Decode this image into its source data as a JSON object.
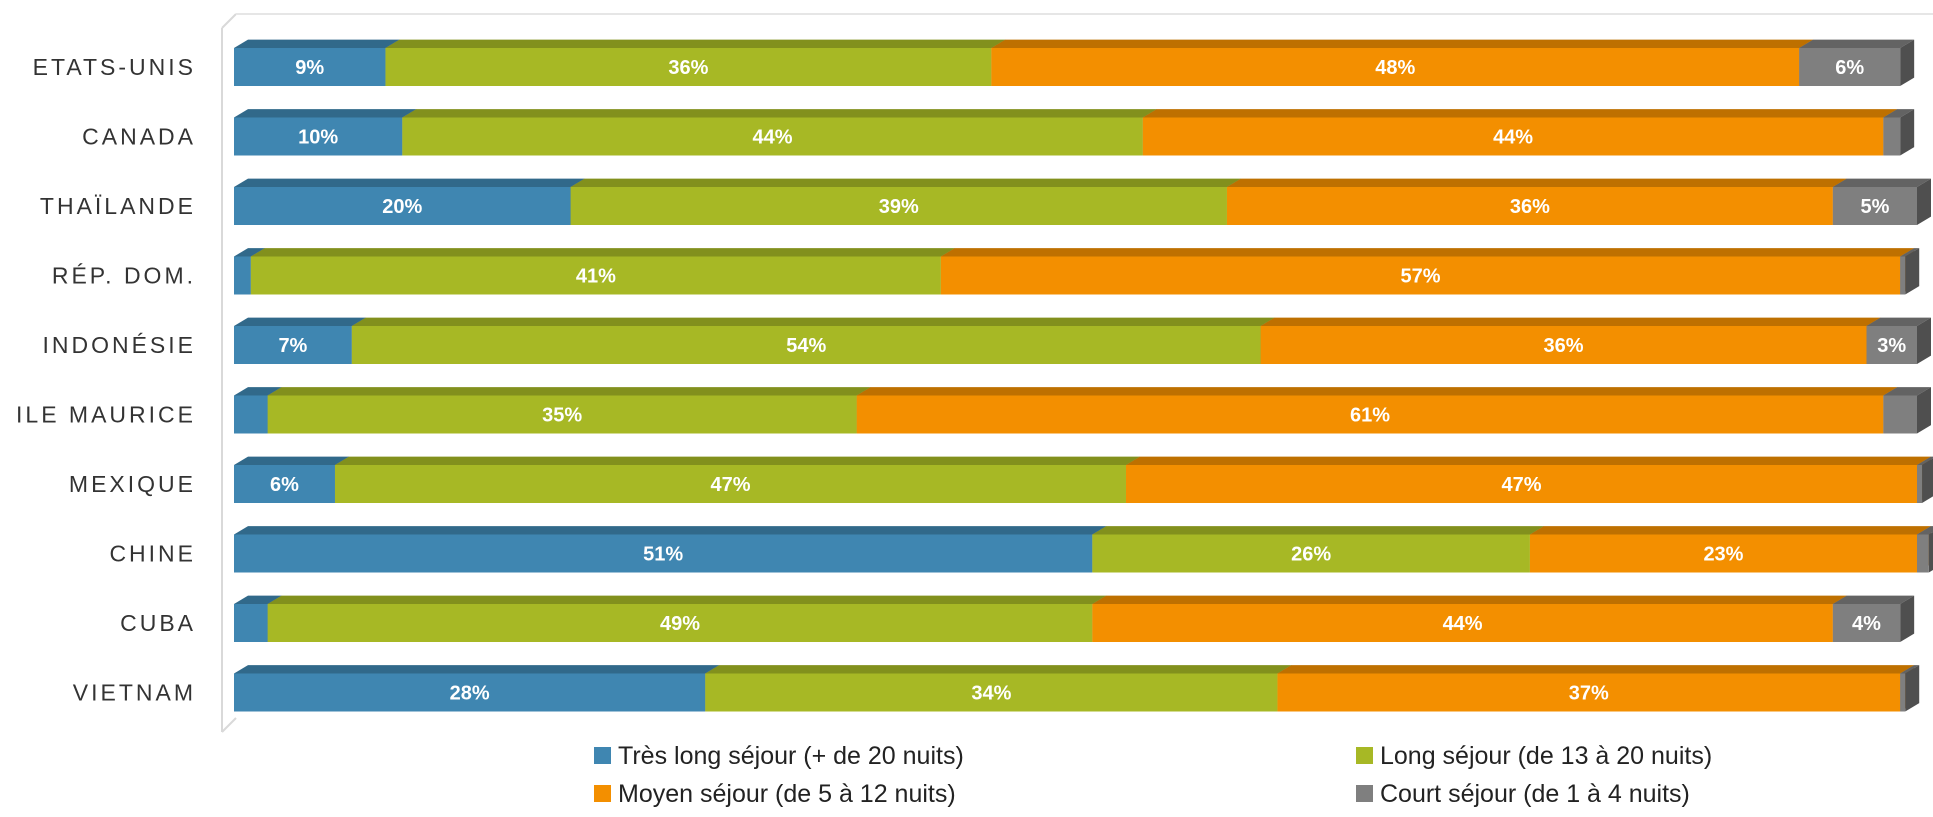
{
  "chart_data": {
    "type": "bar",
    "orientation": "horizontal",
    "stacked": "100%",
    "categories": [
      "ETATS-UNIS",
      "CANADA",
      "THAÏLANDE",
      "RÉP. DOM.",
      "INDONÉSIE",
      "ILE MAURICE",
      "MEXIQUE",
      "CHINE",
      "CUBA",
      "VIETNAM"
    ],
    "series": [
      {
        "name": "Très long séjour (+ de 20 nuits)",
        "color": "#3f86b1",
        "values": [
          9,
          10,
          20,
          1,
          7,
          2,
          6,
          51,
          2,
          28
        ],
        "labels": [
          "9%",
          "10%",
          "20%",
          "",
          "7%",
          "",
          "6%",
          "51%",
          "",
          "28%"
        ]
      },
      {
        "name": "Long séjour (de 13 à 20 nuits)",
        "color": "#a7b825",
        "values": [
          36,
          44,
          39,
          41,
          54,
          35,
          47,
          26,
          49,
          34
        ],
        "labels": [
          "36%",
          "44%",
          "39%",
          "41%",
          "54%",
          "35%",
          "47%",
          "26%",
          "49%",
          "34%"
        ]
      },
      {
        "name": "Moyen séjour (de 5 à 12 nuits)",
        "color": "#f38f00",
        "values": [
          48,
          44,
          36,
          57,
          36,
          61,
          47,
          23,
          44,
          37
        ],
        "labels": [
          "48%",
          "44%",
          "36%",
          "57%",
          "36%",
          "61%",
          "47%",
          "23%",
          "44%",
          "37%"
        ]
      },
      {
        "name": "Court séjour (de 1 à 4 nuits)",
        "color": "#7f7f7f",
        "values": [
          6,
          1,
          5,
          0.3,
          3,
          2,
          0.3,
          0.7,
          4,
          0.3
        ],
        "labels": [
          "6%",
          "",
          "5%",
          "",
          "3%",
          "",
          "",
          "",
          "4%",
          ""
        ]
      }
    ],
    "xlim": [
      0,
      100
    ],
    "grid": false,
    "legend_position": "bottom"
  }
}
